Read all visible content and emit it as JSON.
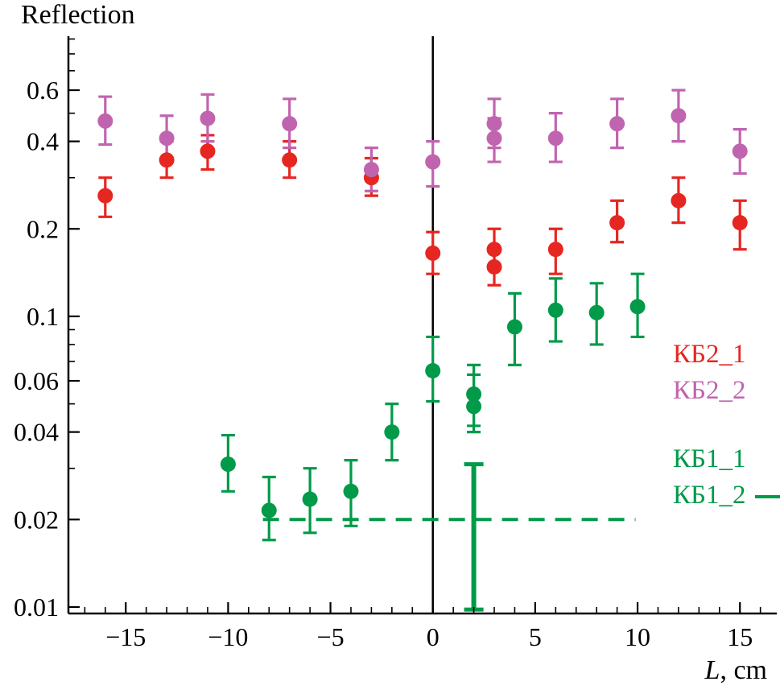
{
  "chart_data": {
    "type": "scatter",
    "title": "Reflection",
    "xlabel": {
      "italic": "L",
      "rest": ", cm"
    },
    "ylabel": "Reflection",
    "yscale": "log",
    "xlim": [
      -17.8,
      16.8
    ],
    "ylim": [
      0.0095,
      0.92
    ],
    "grid": false,
    "vline_x": 0,
    "xticks": {
      "major": [
        {
          "v": -15,
          "label": "−15"
        },
        {
          "v": -10,
          "label": "−10"
        },
        {
          "v": -5,
          "label": "−5"
        },
        {
          "v": 0,
          "label": "0"
        },
        {
          "v": 5,
          "label": "5"
        },
        {
          "v": 10,
          "label": "10"
        },
        {
          "v": 15,
          "label": "15"
        }
      ],
      "minor_step": 1
    },
    "yticks": {
      "major": [
        {
          "v": 0.01,
          "label": "0.01"
        },
        {
          "v": 0.02,
          "label": "0.02"
        },
        {
          "v": 0.04,
          "label": "0.04"
        },
        {
          "v": 0.06,
          "label": "0.06"
        },
        {
          "v": 0.1,
          "label": "0.1"
        },
        {
          "v": 0.2,
          "label": "0.2"
        },
        {
          "v": 0.4,
          "label": "0.4"
        },
        {
          "v": 0.6,
          "label": "0.6"
        }
      ],
      "minor": [
        0.03,
        0.05,
        0.07,
        0.08,
        0.09,
        0.3,
        0.5,
        0.7,
        0.8,
        0.9
      ]
    },
    "series": [
      {
        "name": "КБ2_1",
        "color": "#e62621",
        "marker": "circle",
        "points": [
          {
            "x": -16,
            "y": 0.26,
            "lo": 0.22,
            "hi": 0.3
          },
          {
            "x": -13,
            "y": 0.345,
            "lo": 0.3,
            "hi": 0.4
          },
          {
            "x": -11,
            "y": 0.37,
            "lo": 0.32,
            "hi": 0.42
          },
          {
            "x": -7,
            "y": 0.345,
            "lo": 0.3,
            "hi": 0.4
          },
          {
            "x": -3,
            "y": 0.3,
            "lo": 0.26,
            "hi": 0.35
          },
          {
            "x": 0,
            "y": 0.165,
            "lo": 0.14,
            "hi": 0.195
          },
          {
            "x": 3,
            "y": 0.17,
            "lo": 0.145,
            "hi": 0.2
          },
          {
            "x": 3,
            "y": 0.148,
            "lo": 0.128,
            "hi": 0.172
          },
          {
            "x": 6,
            "y": 0.17,
            "lo": 0.14,
            "hi": 0.2
          },
          {
            "x": 9,
            "y": 0.21,
            "lo": 0.18,
            "hi": 0.25
          },
          {
            "x": 12,
            "y": 0.25,
            "lo": 0.21,
            "hi": 0.3
          },
          {
            "x": 15,
            "y": 0.21,
            "lo": 0.17,
            "hi": 0.25
          }
        ]
      },
      {
        "name": "КБ2_2",
        "color": "#c164b0",
        "marker": "circle",
        "points": [
          {
            "x": -16,
            "y": 0.47,
            "lo": 0.39,
            "hi": 0.57
          },
          {
            "x": -13,
            "y": 0.41,
            "lo": 0.34,
            "hi": 0.49
          },
          {
            "x": -11,
            "y": 0.48,
            "lo": 0.4,
            "hi": 0.58
          },
          {
            "x": -7,
            "y": 0.46,
            "lo": 0.38,
            "hi": 0.56
          },
          {
            "x": -3,
            "y": 0.32,
            "lo": 0.27,
            "hi": 0.38
          },
          {
            "x": 0,
            "y": 0.34,
            "lo": 0.28,
            "hi": 0.4
          },
          {
            "x": 3,
            "y": 0.46,
            "lo": 0.38,
            "hi": 0.56
          },
          {
            "x": 3,
            "y": 0.41,
            "lo": 0.34,
            "hi": 0.48
          },
          {
            "x": 6,
            "y": 0.41,
            "lo": 0.34,
            "hi": 0.5
          },
          {
            "x": 9,
            "y": 0.46,
            "lo": 0.38,
            "hi": 0.56
          },
          {
            "x": 12,
            "y": 0.49,
            "lo": 0.4,
            "hi": 0.6
          },
          {
            "x": 15,
            "y": 0.37,
            "lo": 0.31,
            "hi": 0.44
          }
        ]
      },
      {
        "name": "КБ1_1",
        "color": "#009a49",
        "marker": "circle",
        "points": [
          {
            "x": -10,
            "y": 0.031,
            "lo": 0.025,
            "hi": 0.039
          },
          {
            "x": -8,
            "y": 0.0215,
            "lo": 0.017,
            "hi": 0.028
          },
          {
            "x": -6,
            "y": 0.0235,
            "lo": 0.018,
            "hi": 0.03
          },
          {
            "x": -4,
            "y": 0.025,
            "lo": 0.019,
            "hi": 0.032
          },
          {
            "x": -2,
            "y": 0.04,
            "lo": 0.032,
            "hi": 0.05
          },
          {
            "x": 0,
            "y": 0.065,
            "lo": 0.051,
            "hi": 0.085
          },
          {
            "x": 2,
            "y": 0.054,
            "lo": 0.042,
            "hi": 0.068
          },
          {
            "x": 2,
            "y": 0.049,
            "lo": 0.04,
            "hi": 0.063
          },
          {
            "x": 4,
            "y": 0.092,
            "lo": 0.068,
            "hi": 0.12
          },
          {
            "x": 6,
            "y": 0.105,
            "lo": 0.082,
            "hi": 0.135
          },
          {
            "x": 8,
            "y": 0.103,
            "lo": 0.08,
            "hi": 0.13
          },
          {
            "x": 10,
            "y": 0.108,
            "lo": 0.085,
            "hi": 0.14
          }
        ]
      },
      {
        "name": "КБ1_2",
        "color": "#009a49",
        "marker": "none",
        "dashed_line": {
          "y": 0.02,
          "x_from": -8.3,
          "x_to": 9.9
        },
        "thick_errorbar": {
          "x": 2,
          "y": 0.02,
          "lo": 0.0098,
          "hi": 0.031
        }
      }
    ]
  },
  "legend": {
    "items": [
      {
        "label": "КБ2_1",
        "color": "#e62621"
      },
      {
        "label": "КБ2_2",
        "color": "#c164b0"
      },
      {
        "label": "КБ1_1",
        "color": "#009a49"
      },
      {
        "label": "КБ1_2",
        "color": "#009a49",
        "line_sample": true
      }
    ]
  }
}
